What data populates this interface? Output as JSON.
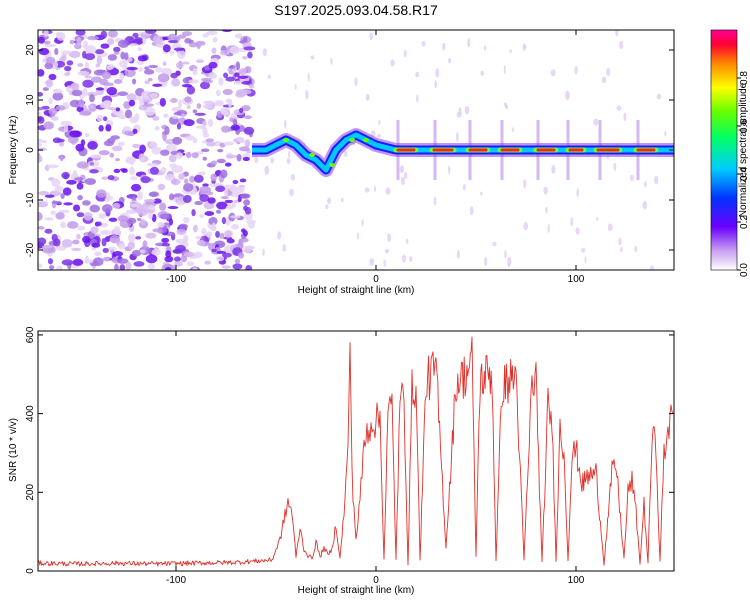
{
  "title": "S197.2025.093.04.58.R17",
  "colors": {
    "snr_line": "#e0302a",
    "frame": "#000000"
  },
  "chart_data": [
    {
      "type": "heatmap",
      "xlabel": "Height of straight line (km)",
      "ylabel": "Frequency (Hz)",
      "xlim": [
        -169,
        149
      ],
      "ylim": [
        -24,
        24
      ],
      "xticks": [
        -100,
        0,
        100
      ],
      "xtick_labels": [
        "-100",
        "0",
        "100"
      ],
      "yticks": [
        -20,
        -10,
        0,
        10,
        20
      ],
      "ytick_labels": [
        "-20",
        "-10",
        "0",
        "10",
        "20"
      ],
      "colorbar": {
        "label": "Normalized spectral amplitude",
        "range": [
          0,
          1
        ],
        "ticks": [
          0.0,
          0.2,
          0.4,
          0.6,
          0.8
        ],
        "tick_labels": [
          "0.0",
          "0.2",
          "0.4",
          "0.6",
          "0.8"
        ],
        "colormap": "rainbow"
      },
      "noise_region_x": [
        -169,
        -62
      ],
      "ridge_path": [
        [
          -62,
          0
        ],
        [
          -55,
          0
        ],
        [
          -50,
          1
        ],
        [
          -45,
          2
        ],
        [
          -40,
          1
        ],
        [
          -35,
          -1
        ],
        [
          -30,
          -2
        ],
        [
          -25,
          -4
        ],
        [
          -20,
          0
        ],
        [
          -15,
          2
        ],
        [
          -10,
          3
        ],
        [
          -5,
          2
        ],
        [
          0,
          1
        ],
        [
          10,
          0
        ],
        [
          149,
          0
        ]
      ],
      "bright_segments_x": [
        [
          10,
          20
        ],
        [
          28,
          39
        ],
        [
          46,
          56
        ],
        [
          62,
          72
        ],
        [
          80,
          90
        ],
        [
          96,
          104
        ],
        [
          110,
          122
        ],
        [
          130,
          140
        ]
      ]
    },
    {
      "type": "line",
      "xlabel": "Height of straight line (km)",
      "ylabel": "SNR (10 * v/v)",
      "xlim": [
        -169,
        149
      ],
      "ylim": [
        0,
        610
      ],
      "xticks": [
        -100,
        0,
        100
      ],
      "xtick_labels": [
        "-100",
        "0",
        "100"
      ],
      "yticks": [
        0,
        200,
        400,
        600
      ],
      "ytick_labels": [
        "0",
        "200",
        "400",
        "600"
      ],
      "series": [
        {
          "x": [
            -169,
            -150,
            -130,
            -110,
            -90,
            -70,
            -52,
            -48,
            -46,
            -44,
            -42,
            -40,
            -38,
            -36,
            -34,
            -32,
            -30,
            -28,
            -26,
            -24,
            -22,
            -20,
            -18,
            -16,
            -14,
            -13,
            -12,
            -10,
            -8,
            -6,
            -4,
            -2,
            0,
            2,
            4,
            6,
            8,
            10,
            12,
            14,
            16,
            18,
            20,
            22,
            25,
            28,
            30,
            35,
            40,
            45,
            48,
            50,
            52,
            55,
            58,
            60,
            63,
            66,
            70,
            74,
            78,
            80,
            83,
            86,
            88,
            90,
            92,
            94,
            96,
            98,
            100,
            103,
            106,
            110,
            114,
            118,
            120,
            124,
            126,
            128,
            130,
            132,
            134,
            136,
            138,
            140,
            142,
            144,
            146,
            148,
            149
          ],
          "y": [
            20,
            18,
            20,
            18,
            20,
            22,
            28,
            80,
            130,
            175,
            150,
            35,
            110,
            55,
            40,
            30,
            75,
            35,
            60,
            40,
            55,
            120,
            30,
            150,
            300,
            610,
            240,
            80,
            180,
            320,
            360,
            380,
            380,
            390,
            30,
            400,
            420,
            30,
            430,
            440,
            20,
            460,
            470,
            30,
            480,
            500,
            520,
            60,
            480,
            500,
            540,
            40,
            480,
            500,
            500,
            30,
            470,
            480,
            500,
            30,
            480,
            490,
            20,
            420,
            380,
            30,
            360,
            300,
            30,
            290,
            310,
            220,
            240,
            250,
            20,
            250,
            270,
            30,
            200,
            230,
            150,
            20,
            170,
            20,
            340,
            320,
            20,
            310,
            330,
            420,
            400
          ]
        }
      ]
    }
  ]
}
